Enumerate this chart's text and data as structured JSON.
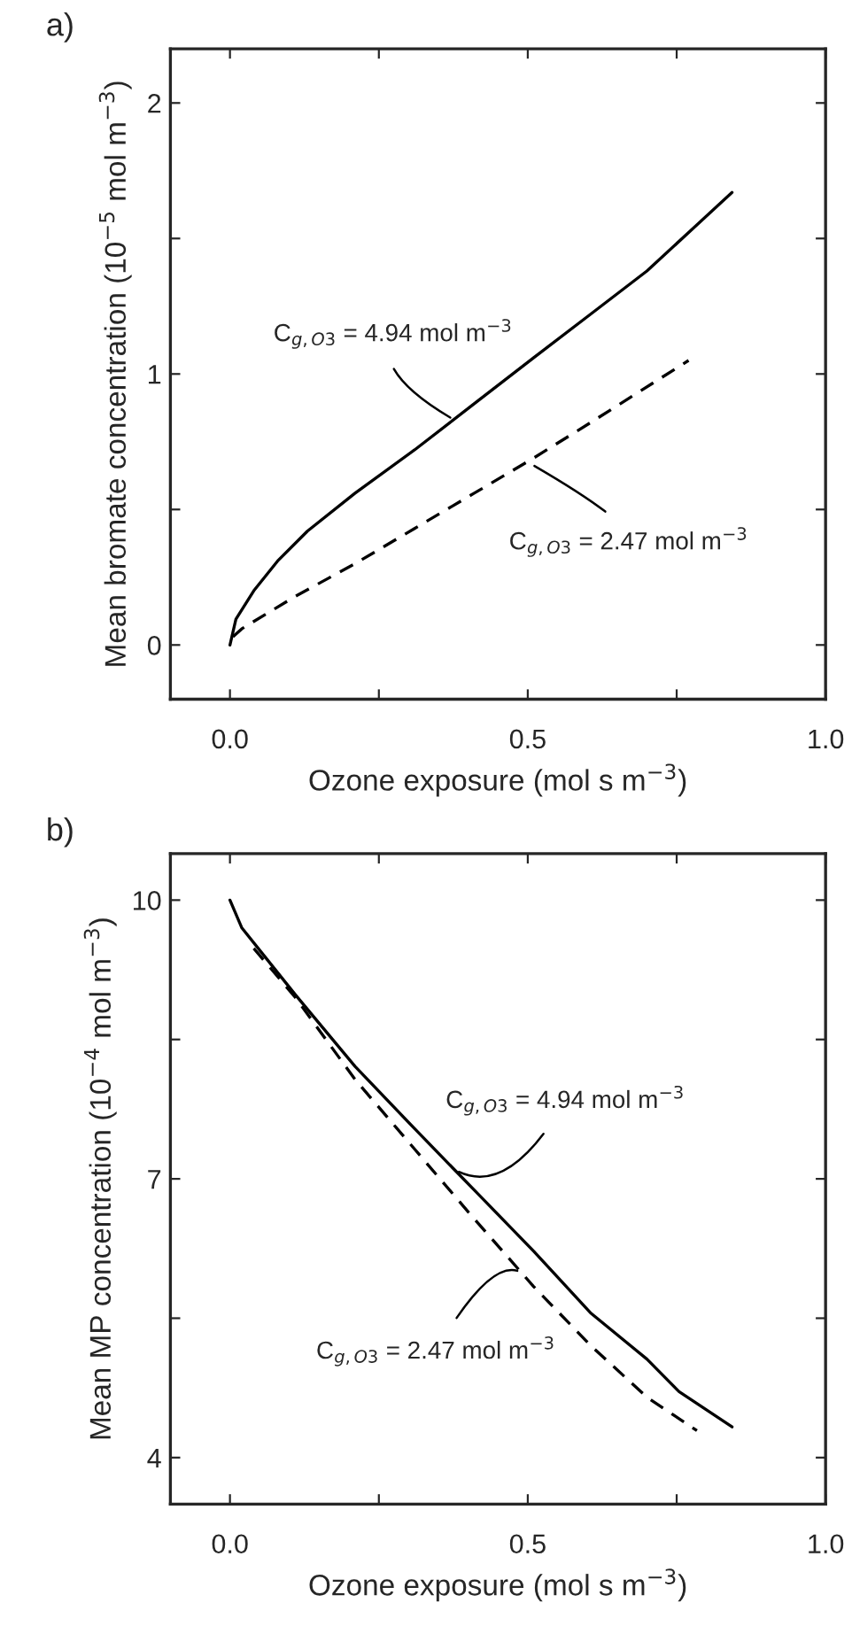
{
  "chart_data": [
    {
      "type": "line",
      "title": "a)",
      "xlabel": "Ozone exposure (mol s m$^{−3}$)",
      "ylabel": "Mean bromate concentration (10$^{−5}$ mol m$^{−3}$)",
      "xlim": [
        -0.1,
        1.0
      ],
      "ylim": [
        -0.2,
        2.2
      ],
      "xticks": [
        {
          "value": 0.0,
          "label": "0.0"
        },
        {
          "value": 0.25,
          "label": null
        },
        {
          "value": 0.5,
          "label": "0.5"
        },
        {
          "value": 0.75,
          "label": null
        },
        {
          "value": 1.0,
          "label": "1.0"
        }
      ],
      "yticks": [
        0,
        {
          "value": 0.5,
          "label": null
        },
        1,
        {
          "value": 1.5,
          "label": null
        },
        2
      ],
      "grid": false,
      "legend": false,
      "marker": "none",
      "series": [
        {
          "color": "#000000",
          "line_style": "solid",
          "x": [
            0,
            0.01,
            0.04,
            0.08,
            0.13,
            0.21,
            0.31,
            0.41,
            0.51,
            0.605,
            0.7,
            0.843
          ],
          "values": [
            0,
            0.095,
            0.2,
            0.31,
            0.42,
            0.56,
            0.72,
            0.89,
            1.06,
            1.22,
            1.38,
            1.67
          ]
        },
        {
          "color": "#000000",
          "line_style": "dashed",
          "x": [
            0.005,
            0.02,
            0.11,
            0.21,
            0.31,
            0.41,
            0.51,
            0.605,
            0.77
          ],
          "values": [
            0.03,
            0.06,
            0.18,
            0.3,
            0.43,
            0.56,
            0.69,
            0.82,
            1.05
          ]
        }
      ],
      "annotations": [
        {
          "text": "C$_{g,O3}$ = 4.94 mol m$^{−3}$",
          "x": 0.377,
          "y": 0.83
        },
        {
          "text": "C$_{g,O3}$ = 2.47 mol m$^{−3}$",
          "x": 0.504,
          "y": 0.67
        }
      ]
    },
    {
      "type": "line",
      "title": "b)",
      "xlabel": "Ozone exposure (mol s m$^{−3}$)",
      "ylabel": "Mean MP concentration (10$^{−4}$ mol m$^{−3}$)",
      "xlim": [
        -0.1,
        1.0
      ],
      "ylim": [
        3.5,
        10.5
      ],
      "xticks": [
        {
          "value": 0.0,
          "label": "0.0"
        },
        {
          "value": 0.25,
          "label": null
        },
        {
          "value": 0.5,
          "label": "0.5"
        },
        {
          "value": 0.75,
          "label": null
        },
        {
          "value": 1.0,
          "label": "1.0"
        }
      ],
      "yticks": [
        4,
        {
          "value": 5.5,
          "label": null
        },
        7,
        {
          "value": 8.5,
          "label": null
        },
        10
      ],
      "grid": false,
      "legend": false,
      "marker": "none",
      "series": [
        {
          "color": "#000000",
          "line_style": "solid",
          "x": [
            0,
            0.02,
            0.06,
            0.11,
            0.21,
            0.31,
            0.41,
            0.51,
            0.605,
            0.7,
            0.754,
            0.843
          ],
          "values": [
            10,
            9.7,
            9.38,
            8.98,
            8.21,
            7.54,
            6.88,
            6.22,
            5.56,
            5.06,
            4.71,
            4.33
          ]
        },
        {
          "color": "#000000",
          "line_style": "dashed",
          "x": [
            0.04,
            0.11,
            0.21,
            0.31,
            0.41,
            0.51,
            0.605,
            0.7,
            0.784
          ],
          "values": [
            9.48,
            8.95,
            8.07,
            7.32,
            6.57,
            5.84,
            5.21,
            4.65,
            4.29
          ]
        }
      ],
      "annotations": [
        {
          "text": "C$_{g,O3}$ = 4.94 mol m$^{−3}$",
          "x": 0.377,
          "y": 7.1
        },
        {
          "text": "C$_{g,O3}$ = 2.47 mol m$^{−3}$",
          "x": 0.49,
          "y": 5.99
        }
      ]
    }
  ]
}
